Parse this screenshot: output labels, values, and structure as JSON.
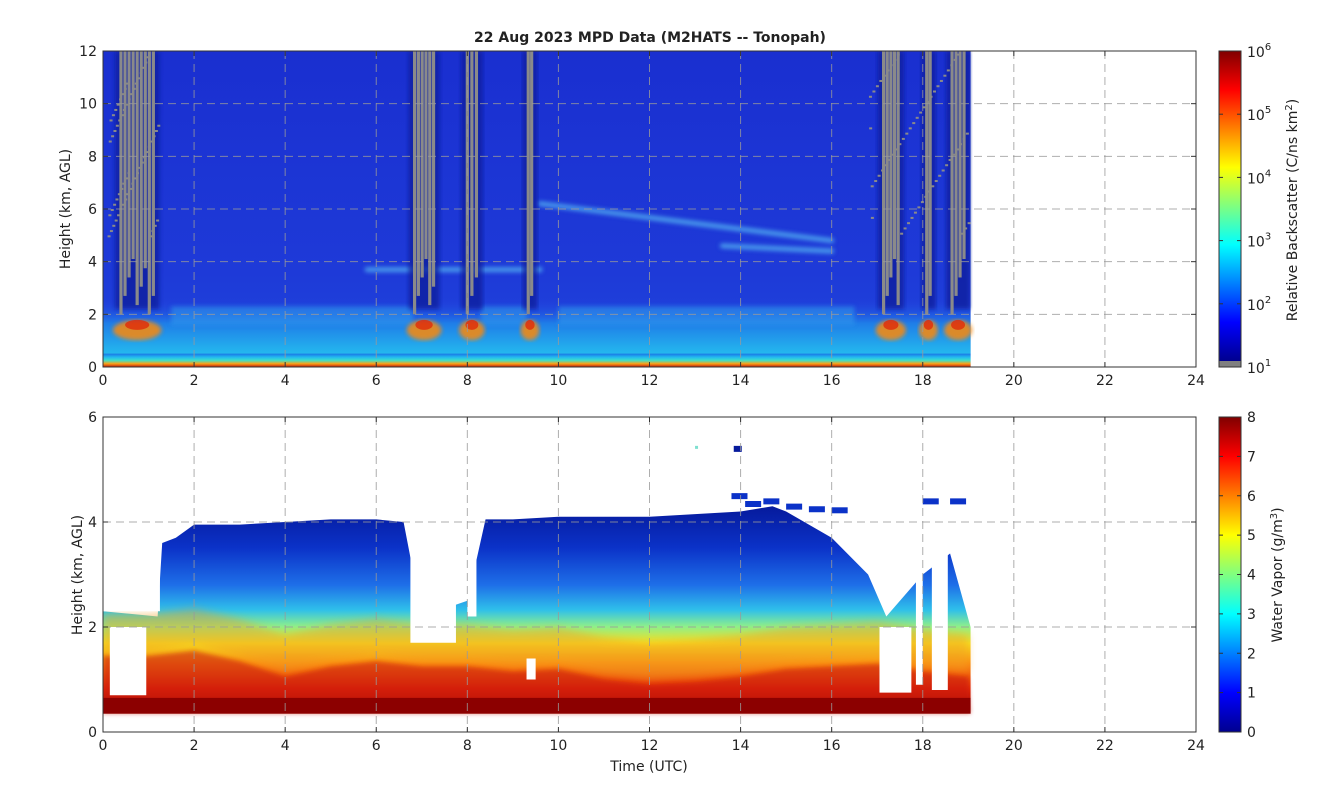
{
  "title": "22 Aug 2023 MPD Data (M2HATS -- Tonopah)",
  "chart_data": [
    {
      "type": "heatmap",
      "panel": "top",
      "xlabel": "",
      "ylabel": "Height (km, AGL)",
      "xlim": [
        0,
        24
      ],
      "ylim": [
        0,
        12
      ],
      "xticks": [
        "0",
        "2",
        "4",
        "6",
        "8",
        "10",
        "12",
        "14",
        "16",
        "18",
        "20",
        "22",
        "24"
      ],
      "yticks": [
        "0",
        "2",
        "4",
        "6",
        "8",
        "10",
        "12"
      ],
      "grid": true,
      "data_extent_x": [
        0,
        19.05
      ],
      "colormap": "jet",
      "colorbar": {
        "label_main": "Relative Backscatter (C/ns km",
        "label_sup": "2",
        "label_end": ")",
        "scale": "log",
        "ticks": [
          {
            "base": "10",
            "exp": "1"
          },
          {
            "base": "10",
            "exp": "2"
          },
          {
            "base": "10",
            "exp": "3"
          },
          {
            "base": "10",
            "exp": "4"
          },
          {
            "base": "10",
            "exp": "5"
          },
          {
            "base": "10",
            "exp": "6"
          }
        ]
      },
      "cloud_columns_hours": [
        [
          0.35,
          1.15
        ],
        [
          6.8,
          7.3
        ],
        [
          7.95,
          8.25
        ],
        [
          9.3,
          9.45
        ],
        [
          17.1,
          17.5
        ],
        [
          18.05,
          18.2
        ],
        [
          18.6,
          18.95
        ]
      ],
      "elevated_layers": [
        {
          "x": [
            9.6,
            16.0
          ],
          "y": [
            6.2,
            4.8
          ]
        },
        {
          "x": [
            13.6,
            16.0
          ],
          "y": [
            4.6,
            4.4
          ]
        },
        {
          "x": [
            5.8,
            9.6
          ],
          "y": [
            3.7,
            3.7
          ]
        }
      ]
    },
    {
      "type": "heatmap",
      "panel": "bottom",
      "xlabel": "Time (UTC)",
      "ylabel": "Height (km, AGL)",
      "xlim": [
        0,
        24
      ],
      "ylim": [
        0,
        6
      ],
      "xticks": [
        "0",
        "2",
        "4",
        "6",
        "8",
        "10",
        "12",
        "14",
        "16",
        "18",
        "20",
        "22",
        "24"
      ],
      "yticks": [
        "0",
        "2",
        "4",
        "6"
      ],
      "grid": true,
      "data_extent_x": [
        0,
        19.05
      ],
      "colormap": "jet",
      "colorbar": {
        "label_main": "Water Vapor (g/m",
        "label_sup": "3",
        "label_end": ")",
        "scale": "linear",
        "range": [
          0,
          8
        ],
        "ticks": [
          "0",
          "1",
          "2",
          "3",
          "4",
          "5",
          "6",
          "7",
          "8"
        ]
      },
      "top_of_data_km": {
        "x": [
          0.0,
          1.2,
          1.3,
          1.6,
          2.0,
          3.0,
          4.0,
          5.0,
          6.0,
          6.6,
          7.0,
          8.0,
          8.4,
          9.0,
          10.0,
          11.0,
          12.0,
          13.0,
          14.0,
          14.7,
          15.0,
          16.0,
          16.8,
          17.2,
          18.0,
          18.6,
          19.05
        ],
        "y": [
          2.3,
          2.2,
          3.6,
          3.7,
          3.95,
          3.95,
          4.0,
          4.05,
          4.05,
          4.0,
          2.2,
          2.5,
          4.05,
          4.05,
          4.1,
          4.1,
          4.1,
          4.15,
          4.2,
          4.3,
          4.2,
          3.7,
          3.0,
          2.2,
          3.0,
          3.4,
          2.0
        ]
      },
      "moisture_transition_km": {
        "x": [
          0,
          1,
          2,
          3,
          4,
          5,
          6,
          7,
          8,
          9,
          10,
          11,
          12,
          13,
          14,
          15,
          16,
          17,
          18,
          19
        ],
        "y": [
          2.0,
          2.0,
          2.1,
          1.9,
          1.6,
          1.8,
          1.9,
          1.8,
          1.8,
          1.7,
          1.75,
          1.55,
          1.45,
          1.5,
          1.6,
          1.75,
          1.8,
          1.85,
          1.7,
          1.6
        ]
      }
    }
  ]
}
